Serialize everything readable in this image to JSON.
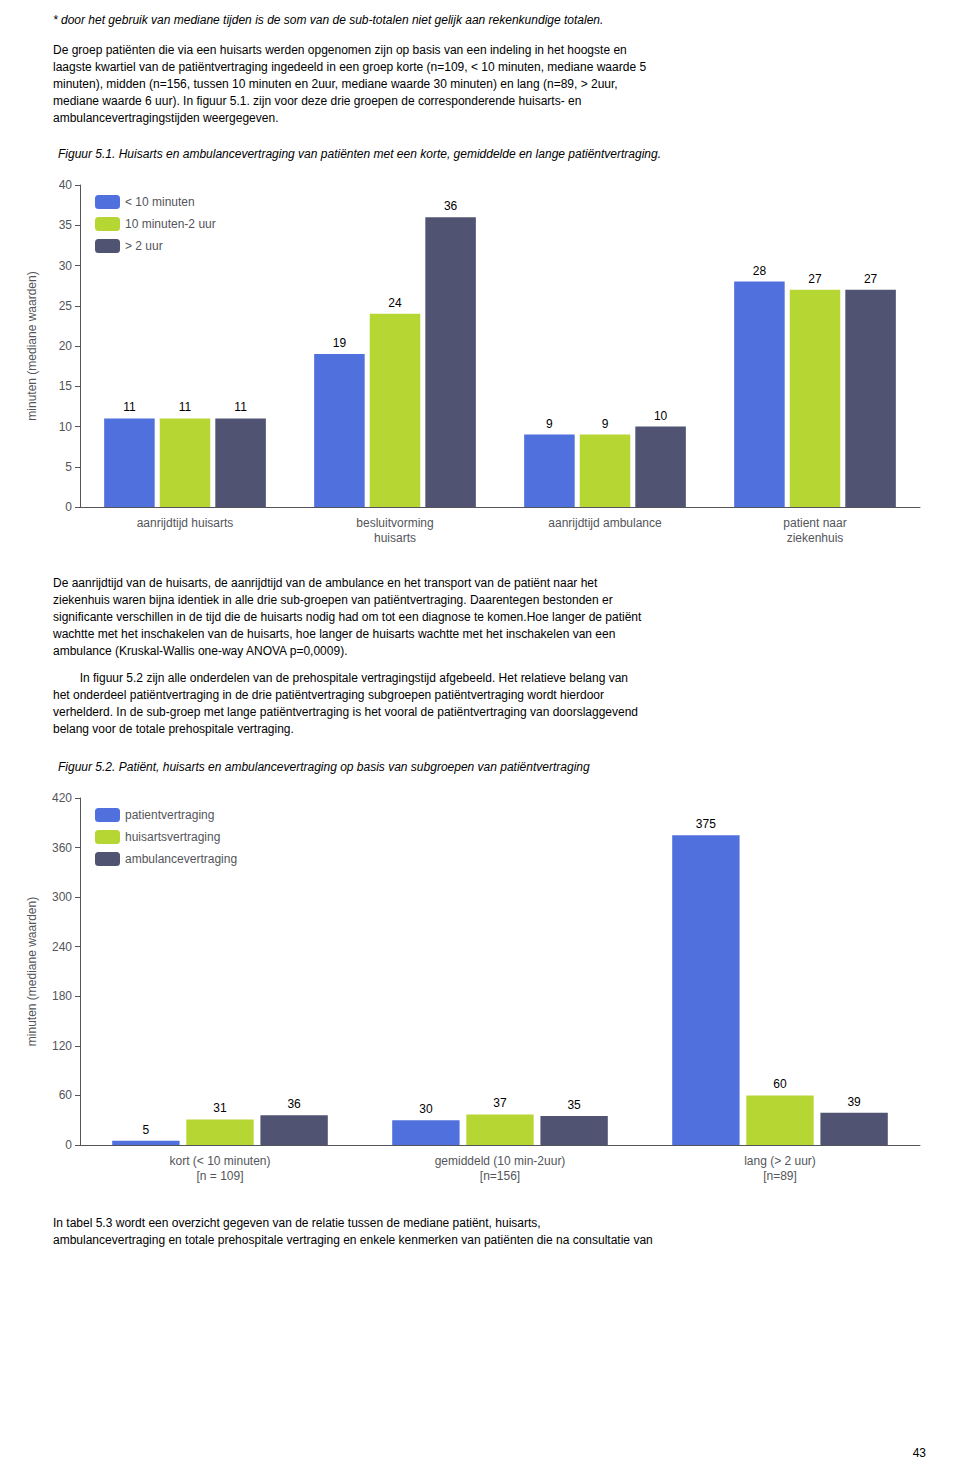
{
  "chart_data": [
    {
      "type": "bar",
      "title": "Figuur 5.1. Huisarts en ambulancevertraging van patiënten met een korte, gemiddelde en lange patiëntvertraging.",
      "ylabel": "minuten (mediane waarden)",
      "categories": [
        "aanrijdtijd huisarts",
        "besluitvorming\nhuisarts",
        "aanrijdtijd ambulance",
        "patient naar\nziekenhuis"
      ],
      "series": [
        {
          "name": "< 10 minuten",
          "values": [
            11,
            19,
            9,
            28
          ]
        },
        {
          "name": "10 minuten-2 uur",
          "values": [
            11,
            24,
            9,
            27
          ]
        },
        {
          "name": "> 2 uur",
          "values": [
            11,
            36,
            10,
            27
          ]
        }
      ],
      "ylim": [
        0,
        40
      ],
      "yticks": [
        0,
        5,
        10,
        15,
        20,
        25,
        30,
        35,
        40
      ],
      "grid": false,
      "legend": "upper left",
      "data_labels": true
    },
    {
      "type": "bar",
      "title": "Figuur 5.2. Patiënt, huisarts en ambulancevertraging op basis van subgroepen van patiëntvertraging",
      "ylabel": "minuten (mediane waarden)",
      "categories": [
        "kort (< 10 minuten)\n[n = 109]",
        "gemiddeld (10 min-2uur)\n[n=156]",
        "lang (> 2 uur)\n[n=89]"
      ],
      "series": [
        {
          "name": "patientvertraging",
          "values": [
            5,
            30,
            375
          ]
        },
        {
          "name": "huisartsvertraging",
          "values": [
            31,
            37,
            60
          ]
        },
        {
          "name": "ambulancevertraging",
          "values": [
            36,
            35,
            39
          ]
        }
      ],
      "ylim": [
        0,
        420
      ],
      "yticks": [
        0,
        60,
        120,
        180,
        240,
        300,
        360,
        420
      ],
      "grid": false,
      "legend": "upper left",
      "data_labels": true
    }
  ],
  "annotations": [
    "* door het gebruik van mediane tijden is de som van de sub-totalen niet gelijk aan rekenkundige totalen.",
    "De groep patiënten die via een huisarts werden opgenomen zijn op basis van een indeling in het hoogste en\nlaagste kwartiel van de patiëntvertraging ingedeeld in een groep korte (n=109, < 10 minuten, mediane waarde 5\nminuten), midden (n=156, tussen 10 minuten en 2uur, mediane waarde 30 minuten) en lang (n=89, > 2uur,\nmediane waarde 6 uur). In figuur 5.1. zijn voor deze drie groepen de corresponderende huisarts- en\nambulancevertragingstijden weergegeven.",
    "De aanrijdtijd van de huisarts, de aanrijdtijd van de ambulance en het transport van de patiënt naar het\nziekenhuis waren bijna identiek in alle drie sub-groepen van patiëntvertraging. Daarentegen bestonden er\nsignificante verschillen in de tijd die de huisarts nodig had om tot een diagnose te komen.Hoe langer de patiënt\nwachtte met het inschakelen van de huisarts, hoe langer de huisarts wachtte met het inschakelen van een\nambulance (Kruskal-Wallis one-way ANOVA p=0,0009).",
    "        In figuur 5.2 zijn alle onderdelen van de prehospitale vertragingstijd afgebeeld. Het relatieve belang van\nhet onderdeel patiëntvertraging in de drie patiëntvertraging subgroepen patiëntvertraging wordt hierdoor\nverhelderd. In de sub-groep met lange patiëntvertraging is het vooral de patiëntvertraging van doorslaggevend\nbelang voor de totale prehospitale vertraging.",
    "In tabel 5.3 wordt een overzicht gegeven van de relatie tussen de mediane patiënt, huisarts,\nambulancevertraging en totale prehospitale vertraging en enkele kenmerken van patiënten die na consultatie van",
    "43"
  ]
}
